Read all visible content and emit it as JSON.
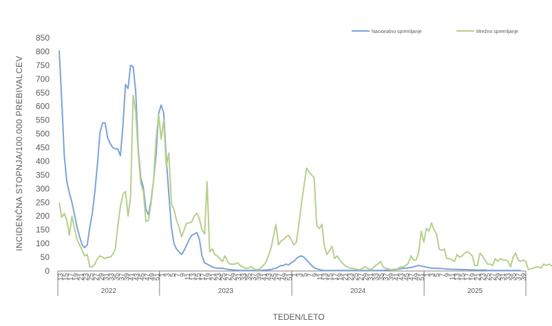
{
  "chart_data": {
    "type": "line",
    "xlabel": "TEDEN/LETO",
    "ylabel": "INCIDENČNA  STOPNJA/100.000  PREBIVALCEV",
    "ylim": [
      0,
      850
    ],
    "yticks": [
      "0",
      "50",
      "100",
      "150",
      "200",
      "250",
      "300",
      "350",
      "400",
      "450",
      "500",
      "550",
      "600",
      "650",
      "700",
      "750",
      "800",
      "850"
    ],
    "grid": false,
    "legend_position": "top-right",
    "years": [
      {
        "label": "2022",
        "weeks": [
          "13",
          "15",
          "17",
          "19",
          "21",
          "23",
          "25",
          "27",
          "29",
          "31",
          "33",
          "35",
          "37",
          "39",
          "41",
          "43",
          "45",
          "47",
          "49",
          "51"
        ]
      },
      {
        "label": "2023",
        "weeks": [
          "1",
          "3",
          "5",
          "7",
          "9",
          "11",
          "13",
          "15",
          "17",
          "19",
          "21",
          "23",
          "25",
          "27",
          "29",
          "31",
          "33",
          "35",
          "37",
          "39",
          "41",
          "43",
          "45",
          "47",
          "49",
          "51"
        ]
      },
      {
        "label": "2024",
        "weeks": [
          "1",
          "3",
          "5",
          "7",
          "9",
          "11",
          "13",
          "15",
          "17",
          "19",
          "21",
          "23",
          "25",
          "27",
          "29",
          "31",
          "33",
          "35",
          "37",
          "39",
          "41",
          "43",
          "45",
          "47",
          "49",
          "51"
        ]
      },
      {
        "label": "2025",
        "weeks": [
          "1",
          "3",
          "5",
          "7",
          "9",
          "11",
          "13",
          "15",
          "17",
          "19",
          "21",
          "23",
          "25",
          "27",
          "29",
          "31",
          "33",
          "35",
          "37",
          "39"
        ]
      }
    ],
    "series": [
      {
        "name": "Nacionalno spremljanje",
        "color": "#7aa2da",
        "values": [
          804,
          620,
          420,
          325,
          285,
          250,
          205,
          160,
          125,
          95,
          85,
          95,
          160,
          210,
          290,
          390,
          505,
          540,
          540,
          485,
          465,
          450,
          445,
          445,
          420,
          530,
          680,
          665,
          750,
          745,
          655,
          445,
          340,
          305,
          225,
          205,
          255,
          330,
          425,
          575,
          605,
          575,
          410,
          280,
          160,
          100,
          80,
          70,
          60,
          75,
          95,
          115,
          130,
          135,
          140,
          115,
          55,
          30,
          25,
          20,
          15,
          12,
          10,
          10,
          10,
          8,
          6,
          5,
          4,
          3,
          3,
          2,
          2,
          2,
          2,
          2,
          2,
          2,
          2,
          2,
          3,
          3,
          4,
          5,
          8,
          10,
          15,
          20,
          20,
          25,
          22,
          30,
          35,
          45,
          52,
          55,
          50,
          40,
          30,
          20,
          12,
          8,
          5,
          3,
          2,
          2,
          2,
          2,
          2,
          2,
          2,
          2,
          2,
          2,
          2,
          2,
          2,
          2,
          2,
          2,
          2,
          2,
          2,
          2,
          2,
          2,
          2,
          2,
          3,
          3,
          5,
          5,
          6,
          7,
          8,
          10,
          10,
          12,
          13,
          15,
          18,
          20,
          18,
          16,
          14,
          12,
          10,
          10,
          10,
          9,
          9,
          8,
          7,
          7,
          6,
          6,
          6,
          5,
          5,
          5,
          5,
          4,
          4,
          4,
          3,
          3,
          3,
          3,
          2,
          2,
          2,
          2,
          2,
          2,
          2,
          2,
          2,
          2,
          2,
          2,
          2,
          2
        ]
      },
      {
        "name": "Mrežno spremljanje",
        "color": "#b5cf8b",
        "values": [
          250,
          195,
          210,
          185,
          130,
          200,
          155,
          115,
          95,
          75,
          55,
          60,
          15,
          15,
          25,
          45,
          55,
          50,
          45,
          50,
          50,
          60,
          80,
          165,
          235,
          280,
          290,
          200,
          270,
          640,
          580,
          430,
          320,
          290,
          180,
          185,
          245,
          330,
          480,
          570,
          480,
          550,
          380,
          430,
          245,
          225,
          185,
          160,
          125,
          150,
          175,
          175,
          180,
          200,
          210,
          190,
          150,
          135,
          325,
          70,
          80,
          60,
          55,
          45,
          35,
          55,
          35,
          25,
          25,
          25,
          30,
          20,
          15,
          10,
          10,
          15,
          10,
          5,
          5,
          10,
          20,
          30,
          55,
          80,
          125,
          170,
          95,
          110,
          115,
          125,
          130,
          115,
          95,
          105,
          170,
          245,
          310,
          375,
          360,
          350,
          340,
          165,
          155,
          170,
          90,
          60,
          75,
          90,
          45,
          55,
          40,
          30,
          20,
          15,
          10,
          10,
          8,
          5,
          5,
          10,
          15,
          10,
          5,
          10,
          20,
          25,
          35,
          15,
          10,
          8,
          5,
          3,
          3,
          10,
          15,
          15,
          20,
          30,
          55,
          40,
          40,
          70,
          145,
          105,
          155,
          145,
          175,
          150,
          135,
          80,
          75,
          80,
          45,
          45,
          40,
          35,
          60,
          50,
          55,
          65,
          70,
          65,
          55,
          20,
          20,
          65,
          55,
          40,
          25,
          25,
          20,
          45,
          35,
          45,
          40,
          40,
          35,
          15,
          50,
          65,
          40,
          35,
          40,
          35,
          5,
          8,
          10,
          15,
          15,
          10,
          25,
          20,
          25,
          20,
          20,
          15,
          10,
          5,
          5,
          2,
          2
        ]
      }
    ]
  }
}
